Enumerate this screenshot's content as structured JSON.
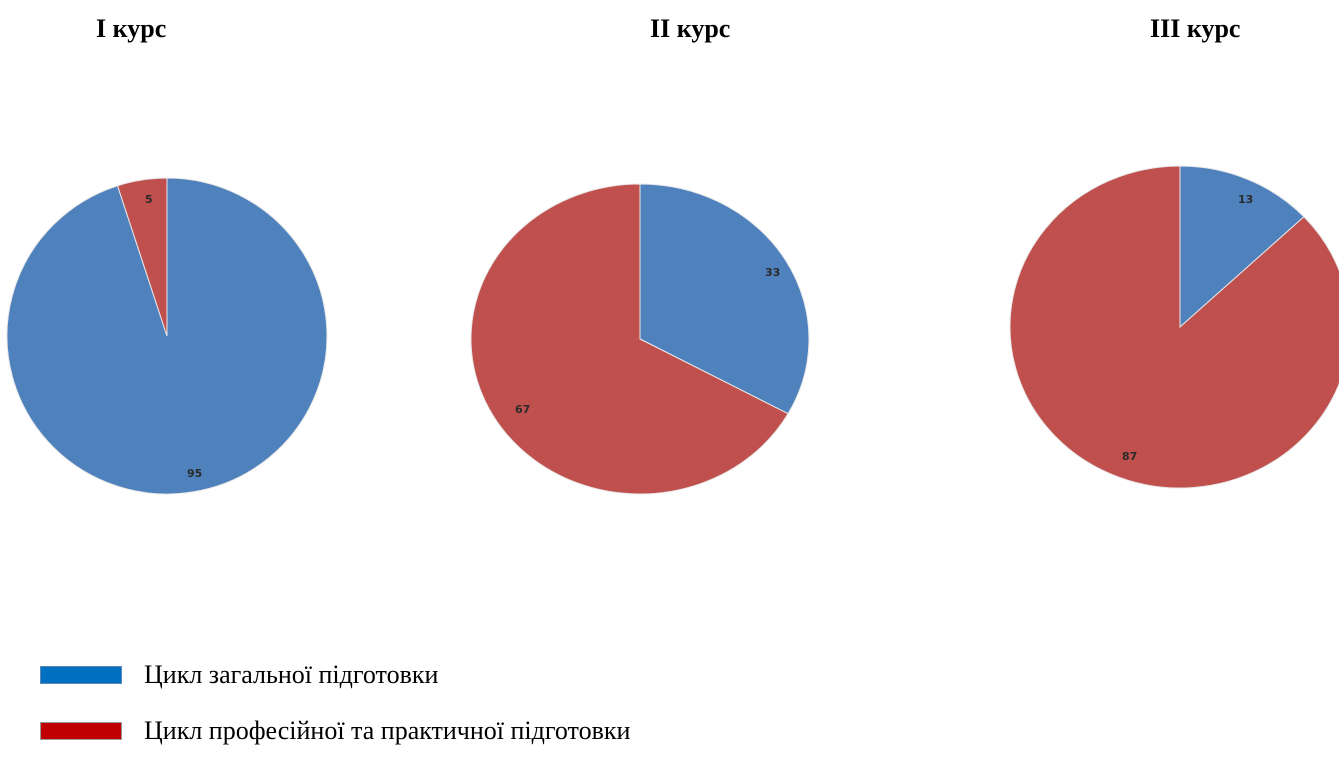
{
  "chart_data": [
    {
      "type": "pie",
      "title": "І курс",
      "slices": [
        {
          "series": "Цикл загальної підготовки",
          "value": 95,
          "label": "95"
        },
        {
          "series": "Цикл професійної та практичної підготовки",
          "value": 5,
          "label": "5"
        }
      ]
    },
    {
      "type": "pie",
      "title": "ІІ курс",
      "slices": [
        {
          "series": "Цикл загальної підготовки",
          "value": 33,
          "label": "33"
        },
        {
          "series": "Цикл професійної та практичної підготовки",
          "value": 67,
          "label": "67"
        }
      ]
    },
    {
      "type": "pie",
      "title": "ІІІ курс",
      "slices": [
        {
          "series": "Цикл загальної підготовки",
          "value": 13,
          "label": "13"
        },
        {
          "series": "Цикл професійної та практичної підготовки",
          "value": 87,
          "label": "87"
        }
      ]
    }
  ],
  "colors": {
    "general_slice": "#4f81bd",
    "professional_slice": "#c0504d",
    "general_legend": "#0070c0",
    "professional_legend": "#c00000"
  },
  "legend": [
    {
      "label": "Цикл загальної підготовки",
      "color_key": "general_legend"
    },
    {
      "label": "Цикл професійної та практичної підготовки",
      "color_key": "professional_legend"
    }
  ]
}
